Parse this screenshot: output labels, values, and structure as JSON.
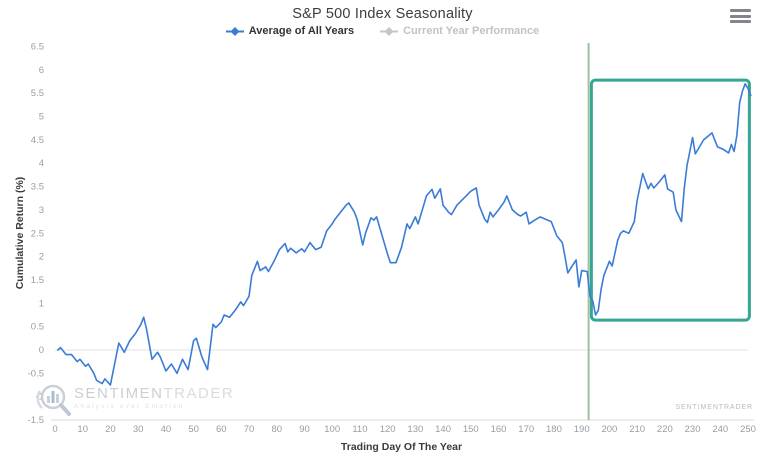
{
  "title": "S&P 500 Index Seasonality",
  "legend": [
    {
      "label": "Average of All Years",
      "color": "#3b7bd8",
      "text_color": "#343434",
      "active": true
    },
    {
      "label": "Current Year Performance",
      "color": "#c3c6cb",
      "text_color": "#bfc3c8",
      "active": false
    }
  ],
  "menu_icon": "hamburger-menu",
  "watermark": {
    "brand_left": "SENTIMEN",
    "brand_right": "TRADER",
    "tagline": "Analysis over Emotion",
    "corner": "SENTIMENTRADER"
  },
  "chart_data": {
    "type": "line",
    "title": "S&P 500 Index Seasonality",
    "xlabel": "Trading Day Of The Year",
    "ylabel": "Cumulative Return (%)",
    "xlim": [
      0,
      252
    ],
    "ylim": [
      -1.5,
      6.5
    ],
    "x_ticks": [
      0,
      10,
      20,
      30,
      40,
      50,
      60,
      70,
      80,
      90,
      100,
      110,
      120,
      130,
      140,
      150,
      160,
      170,
      180,
      190,
      200,
      210,
      220,
      230,
      240,
      250
    ],
    "y_ticks": [
      6.5,
      6,
      5.5,
      5,
      4.5,
      4,
      3.5,
      3,
      2.5,
      2,
      1.5,
      1,
      0.5,
      0,
      -0.5,
      -1,
      -1.5
    ],
    "grid": {
      "zero_line": 0
    },
    "legend_position": "top",
    "series": [
      {
        "name": "Average of All Years",
        "color": "#3b7bd8",
        "x": [
          1,
          2,
          4,
          6,
          8,
          9,
          11,
          12,
          14,
          15,
          17,
          18,
          20,
          21,
          23,
          25,
          27,
          29,
          31,
          32,
          33,
          35,
          37,
          38,
          40,
          42,
          44,
          46,
          48,
          50,
          51,
          53,
          55,
          57,
          58,
          60,
          61,
          63,
          65,
          67,
          68,
          70,
          71,
          73,
          74,
          76,
          77,
          79,
          81,
          83,
          84,
          85,
          87,
          89,
          90,
          92,
          94,
          96,
          98,
          100,
          101,
          103,
          105,
          106,
          108,
          109,
          111,
          112,
          114,
          115,
          116,
          118,
          120,
          121,
          123,
          125,
          126,
          127,
          128,
          130,
          131,
          133,
          134,
          136,
          137,
          139,
          140,
          142,
          143,
          145,
          147,
          148,
          150,
          152,
          153,
          155,
          156,
          157,
          158,
          160,
          162,
          163,
          165,
          167,
          168,
          170,
          171,
          173,
          175,
          177,
          179,
          181,
          183,
          184,
          185,
          186,
          188,
          189,
          190,
          192,
          193,
          194,
          195,
          196,
          197,
          198,
          200,
          201,
          203,
          204,
          205,
          207,
          209,
          210,
          212,
          214,
          215,
          216,
          218,
          220,
          221,
          223,
          224,
          226,
          227,
          228,
          230,
          231,
          233,
          234,
          236,
          237,
          239,
          241,
          243,
          244,
          245,
          246,
          247,
          248,
          249,
          250,
          251
        ],
        "y": [
          0,
          0.05,
          -0.1,
          -0.1,
          -0.25,
          -0.2,
          -0.35,
          -0.3,
          -0.5,
          -0.65,
          -0.72,
          -0.62,
          -0.75,
          -0.45,
          0.15,
          -0.05,
          0.2,
          0.35,
          0.55,
          0.7,
          0.45,
          -0.2,
          -0.05,
          -0.15,
          -0.45,
          -0.3,
          -0.5,
          -0.2,
          -0.42,
          0.2,
          0.25,
          -0.15,
          -0.42,
          0.55,
          0.48,
          0.6,
          0.75,
          0.7,
          0.85,
          1.03,
          0.95,
          1.15,
          1.6,
          1.9,
          1.7,
          1.78,
          1.68,
          1.9,
          2.15,
          2.28,
          2.1,
          2.18,
          2.08,
          2.17,
          2.1,
          2.3,
          2.15,
          2.2,
          2.55,
          2.7,
          2.8,
          2.95,
          3.1,
          3.15,
          2.95,
          2.8,
          2.25,
          2.5,
          2.83,
          2.78,
          2.85,
          2.45,
          2.05,
          1.87,
          1.87,
          2.2,
          2.45,
          2.7,
          2.6,
          2.85,
          2.7,
          3.1,
          3.3,
          3.44,
          3.25,
          3.45,
          3.1,
          2.95,
          2.9,
          3.1,
          3.22,
          3.28,
          3.4,
          3.47,
          3.1,
          2.8,
          2.73,
          2.95,
          2.85,
          3.0,
          3.17,
          3.3,
          3.0,
          2.9,
          2.87,
          2.95,
          2.7,
          2.78,
          2.85,
          2.8,
          2.75,
          2.45,
          2.3,
          2.0,
          1.65,
          1.75,
          1.93,
          1.35,
          1.7,
          1.68,
          1.15,
          1.05,
          0.75,
          0.85,
          1.3,
          1.6,
          1.9,
          1.8,
          2.35,
          2.5,
          2.55,
          2.5,
          2.75,
          3.2,
          3.78,
          3.45,
          3.57,
          3.47,
          3.6,
          3.75,
          3.45,
          3.38,
          3.0,
          2.75,
          3.45,
          3.95,
          4.55,
          4.2,
          4.4,
          4.5,
          4.6,
          4.65,
          4.35,
          4.3,
          4.22,
          4.4,
          4.25,
          4.6,
          5.3,
          5.55,
          5.7,
          5.6,
          5.45
        ]
      }
    ],
    "annotations": {
      "vline": {
        "x": 192.5,
        "color": "#9bc29d",
        "width": 2
      },
      "highlight_box": {
        "x0": 193.5,
        "x1": 250.5,
        "y0": 0.64,
        "y1": 5.78,
        "color": "#36a692",
        "stroke_width": 3
      }
    }
  },
  "colors": {
    "tick_label": "#9a9da1",
    "zero_line": "#e2e2e2",
    "axis_line": "#d9d9d9",
    "series_blue": "#3b7bd8",
    "box_teal": "#36a692",
    "vline_green": "#9bc29d"
  }
}
